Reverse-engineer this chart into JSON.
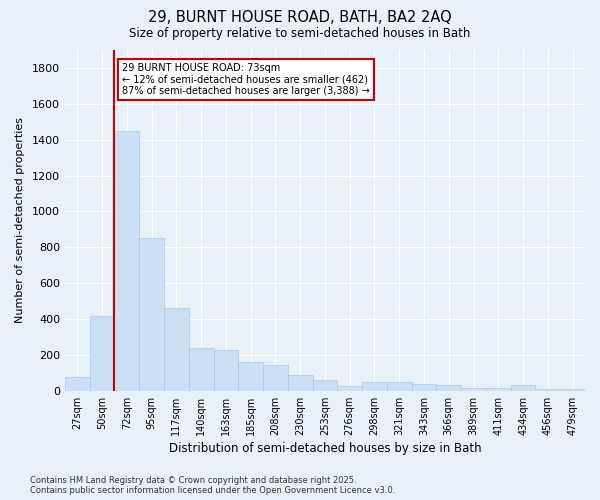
{
  "title": "29, BURNT HOUSE ROAD, BATH, BA2 2AQ",
  "subtitle": "Size of property relative to semi-detached houses in Bath",
  "xlabel": "Distribution of semi-detached houses by size in Bath",
  "ylabel": "Number of semi-detached properties",
  "bar_color": "#cce0f5",
  "bar_edge_color": "#aac8e8",
  "background_color": "#e8f0fa",
  "grid_color": "#ffffff",
  "categories": [
    "27sqm",
    "50sqm",
    "72sqm",
    "95sqm",
    "117sqm",
    "140sqm",
    "163sqm",
    "185sqm",
    "208sqm",
    "230sqm",
    "253sqm",
    "276sqm",
    "298sqm",
    "321sqm",
    "343sqm",
    "366sqm",
    "389sqm",
    "411sqm",
    "434sqm",
    "456sqm",
    "479sqm"
  ],
  "values": [
    75,
    415,
    1450,
    850,
    460,
    240,
    230,
    160,
    145,
    90,
    60,
    25,
    50,
    50,
    40,
    30,
    18,
    18,
    35,
    12,
    8
  ],
  "ylim": [
    0,
    1900
  ],
  "yticks": [
    0,
    200,
    400,
    600,
    800,
    1000,
    1200,
    1400,
    1600,
    1800
  ],
  "property_line_bin": 2,
  "annotation_text": "29 BURNT HOUSE ROAD: 73sqm\n← 12% of semi-detached houses are smaller (462)\n87% of semi-detached houses are larger (3,388) →",
  "annotation_box_color": "#ffffff",
  "annotation_box_edge": "#cc0000",
  "vline_color": "#cc0000",
  "footnote": "Contains HM Land Registry data © Crown copyright and database right 2025.\nContains public sector information licensed under the Open Government Licence v3.0."
}
